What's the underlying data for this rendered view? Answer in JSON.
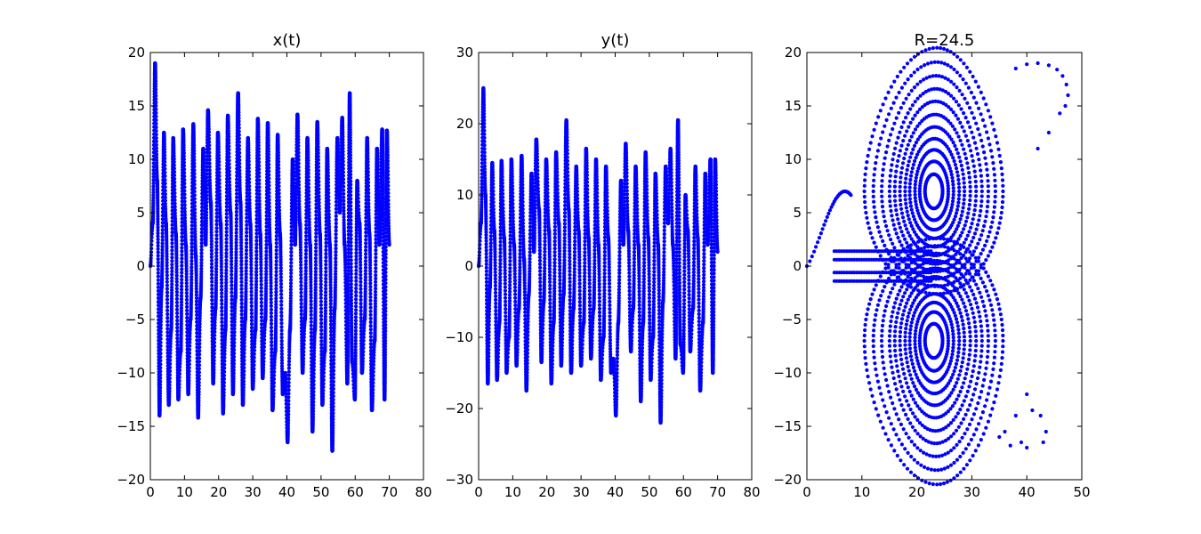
{
  "figure": {
    "background": "#ffffff",
    "marker_color": "#0000ff"
  },
  "chart_data": [
    {
      "type": "scatter",
      "title": "x(t)",
      "xlabel": "",
      "ylabel": "",
      "xlim": [
        0,
        80
      ],
      "ylim": [
        -20,
        20
      ],
      "xticks": [
        "0",
        "10",
        "20",
        "30",
        "40",
        "50",
        "60",
        "70",
        "80"
      ],
      "yticks": [
        "−20",
        "−15",
        "−10",
        "−5",
        "0",
        "5",
        "10",
        "15",
        "20"
      ],
      "grid": false,
      "legend": "none",
      "series": [
        {
          "color": "#0000ff",
          "x": [
            0.0,
            0.7,
            1.4,
            2.0,
            2.7,
            3.3,
            4.0,
            4.6,
            5.4,
            6.1,
            6.7,
            7.5,
            8.2,
            8.9,
            9.6,
            10.4,
            11.1,
            11.8,
            12.6,
            13.3,
            14.0,
            14.7,
            15.5,
            16.2,
            16.9,
            17.7,
            18.4,
            19.1,
            19.8,
            20.6,
            21.3,
            22.0,
            22.7,
            23.5,
            24.2,
            24.9,
            25.7,
            26.4,
            27.1,
            27.8,
            28.6,
            29.3,
            30.0,
            30.8,
            31.5,
            32.2,
            32.9,
            33.7,
            34.4,
            35.1,
            35.8,
            36.6,
            37.3,
            38.0,
            38.8,
            39.5,
            40.2,
            40.9,
            41.7,
            42.4,
            43.1,
            43.8,
            44.6,
            45.3,
            46.0,
            46.8,
            47.5,
            48.2,
            48.9,
            49.7,
            50.4,
            51.1,
            51.8,
            52.6,
            53.3,
            54.0,
            54.8,
            55.5,
            56.2,
            56.9,
            57.7,
            58.4,
            59.1,
            59.9,
            60.6,
            61.3,
            62.0,
            62.8,
            63.5,
            64.2,
            64.9,
            65.7,
            66.4,
            67.1,
            67.9,
            68.6,
            69.3,
            70.0
          ],
          "y": [
            0.0,
            4.0,
            19.0,
            8.0,
            -14.0,
            -2.0,
            12.5,
            4.0,
            -13.0,
            -6.0,
            12.0,
            3.0,
            -12.5,
            -8.0,
            12.8,
            2.0,
            -12.0,
            -5.0,
            13.3,
            1.0,
            -14.2,
            -3.0,
            11.0,
            2.0,
            14.6,
            6.0,
            -11.0,
            -4.0,
            12.5,
            4.0,
            -13.8,
            -6.0,
            14.1,
            5.0,
            -12.0,
            -3.0,
            16.2,
            6.0,
            -13.0,
            -5.0,
            12.0,
            4.0,
            -11.5,
            -6.0,
            13.8,
            3.0,
            -10.5,
            -5.0,
            13.4,
            2.0,
            -13.5,
            -8.0,
            12.3,
            3.0,
            -12.0,
            -10.0,
            -16.5,
            -6.0,
            10.0,
            2.0,
            14.2,
            4.0,
            -10.0,
            -5.0,
            12.0,
            2.0,
            -15.5,
            -6.0,
            13.5,
            3.0,
            -13.0,
            -8.0,
            11.0,
            2.0,
            -17.3,
            -4.0,
            12.0,
            5.0,
            13.9,
            2.0,
            -11.0,
            16.2,
            -9.0,
            -12.5,
            8.0,
            4.0,
            -10.0,
            -5.0,
            12.0,
            3.0,
            -13.5,
            -7.0,
            11.0,
            2.0,
            12.8,
            -12.5,
            12.7,
            2.0
          ]
        }
      ]
    },
    {
      "type": "scatter",
      "title": "y(t)",
      "xlabel": "",
      "ylabel": "",
      "xlim": [
        0,
        80
      ],
      "ylim": [
        -30,
        30
      ],
      "xticks": [
        "0",
        "10",
        "20",
        "30",
        "40",
        "50",
        "60",
        "70",
        "80"
      ],
      "yticks": [
        "−30",
        "−20",
        "−10",
        "0",
        "10",
        "20",
        "30"
      ],
      "grid": false,
      "legend": "none",
      "series": [
        {
          "color": "#0000ff",
          "x": [
            0.0,
            0.7,
            1.4,
            2.0,
            2.7,
            3.3,
            4.0,
            4.6,
            5.4,
            6.1,
            6.7,
            7.5,
            8.2,
            8.9,
            9.6,
            10.4,
            11.1,
            11.8,
            12.6,
            13.3,
            14.0,
            14.7,
            15.5,
            16.2,
            16.9,
            17.7,
            18.4,
            19.1,
            19.8,
            20.6,
            21.3,
            22.0,
            22.7,
            23.5,
            24.2,
            24.9,
            25.7,
            26.4,
            27.1,
            27.8,
            28.6,
            29.3,
            30.0,
            30.8,
            31.5,
            32.2,
            32.9,
            33.7,
            34.4,
            35.1,
            35.8,
            36.6,
            37.3,
            38.0,
            38.8,
            39.5,
            40.2,
            40.9,
            41.7,
            42.4,
            43.1,
            43.8,
            44.6,
            45.3,
            46.0,
            46.8,
            47.5,
            48.2,
            48.9,
            49.7,
            50.4,
            51.1,
            51.8,
            52.6,
            53.3,
            54.0,
            54.8,
            55.5,
            56.2,
            56.9,
            57.7,
            58.4,
            59.1,
            59.9,
            60.6,
            61.3,
            62.0,
            62.8,
            63.5,
            64.2,
            64.9,
            65.7,
            66.4,
            67.1,
            67.9,
            68.6,
            69.3,
            70.0
          ],
          "y": [
            0.0,
            6.0,
            25.0,
            10.0,
            -16.5,
            -3.0,
            14.5,
            5.0,
            -16.0,
            -8.0,
            14.8,
            4.0,
            -15.0,
            -10.0,
            15.0,
            3.0,
            -14.0,
            -6.0,
            15.5,
            1.0,
            -17.5,
            -4.0,
            13.0,
            2.0,
            17.8,
            8.0,
            -13.5,
            -5.0,
            15.0,
            5.0,
            -16.5,
            -8.0,
            16.0,
            6.0,
            -14.0,
            -4.0,
            20.5,
            8.0,
            -15.0,
            -6.0,
            14.0,
            5.0,
            -14.0,
            -8.0,
            16.5,
            4.0,
            -13.0,
            -6.0,
            15.0,
            3.0,
            -16.0,
            -10.0,
            14.0,
            4.0,
            -15.0,
            -13.0,
            -21.0,
            -8.0,
            12.0,
            3.0,
            17.2,
            5.0,
            -12.0,
            -6.0,
            14.0,
            3.0,
            -19.0,
            -8.0,
            16.0,
            4.0,
            -16.0,
            -10.0,
            13.0,
            3.0,
            -22.0,
            -5.0,
            14.0,
            6.0,
            16.5,
            3.0,
            -13.0,
            20.5,
            -11.0,
            -15.0,
            10.0,
            5.0,
            -12.0,
            -6.0,
            14.0,
            4.0,
            -17.5,
            -8.0,
            13.0,
            3.0,
            15.0,
            -15.0,
            15.0,
            2.0
          ]
        }
      ]
    },
    {
      "type": "scatter",
      "title": "R=24.5",
      "xlabel": "",
      "ylabel": "",
      "xlim": [
        0,
        50
      ],
      "ylim": [
        -20,
        20
      ],
      "xticks": [
        "0",
        "10",
        "20",
        "30",
        "40",
        "50"
      ],
      "yticks": [
        "−20",
        "−15",
        "−10",
        "−5",
        "0",
        "5",
        "10",
        "15",
        "20"
      ],
      "grid": false,
      "legend": "none",
      "attractor": {
        "center_upper": [
          23.0,
          7.0
        ],
        "center_lower": [
          23.0,
          -7.0
        ],
        "saddle": [
          0.0,
          0.0
        ]
      },
      "outliers": {
        "x": [
          38,
          40,
          42,
          44,
          45.5,
          46.5,
          47.2,
          47.5,
          47,
          46,
          44,
          42,
          40,
          38,
          36,
          35,
          37,
          40,
          43,
          43.5,
          42.5,
          41,
          39
        ],
        "y": [
          18.5,
          18.9,
          19.0,
          18.8,
          18.4,
          17.8,
          17.0,
          16.0,
          15.0,
          14.3,
          12.5,
          11.0,
          -12.0,
          -14.0,
          -15.5,
          -16.0,
          -16.8,
          -17.0,
          -16.5,
          -15.5,
          -14.0,
          -13.5,
          -16.5
        ]
      }
    }
  ]
}
